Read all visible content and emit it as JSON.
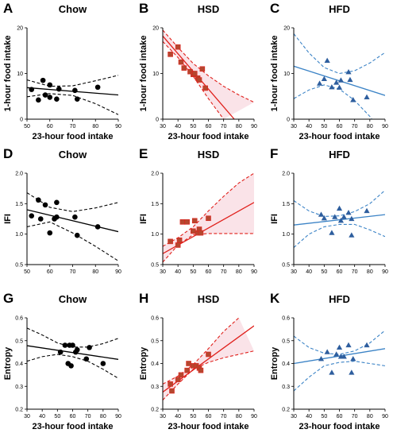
{
  "colors": {
    "chow": "#000000",
    "hsd": "#e0201b",
    "hsd_fill": "#b5472f",
    "hfd": "#2e5e9e",
    "hfd_line": "#3b83c6"
  },
  "chart_data": [
    {
      "letter": "A",
      "type": "scatter",
      "title": "Chow",
      "xlabel": "23-hour food intake",
      "ylabel": "1-hour food intake",
      "xlim": [
        50,
        90
      ],
      "ylim": [
        0,
        20
      ],
      "xticks": [
        50,
        60,
        70,
        80,
        90
      ],
      "yticks": [
        0,
        10,
        20
      ],
      "marker": "circle",
      "color": "#000000",
      "x": [
        52,
        55,
        57,
        58,
        60,
        60,
        63,
        64,
        71,
        72,
        81
      ],
      "y": [
        6.5,
        4.2,
        8.5,
        5.3,
        4.8,
        7.5,
        4.4,
        6.6,
        6.3,
        4.4,
        7.0
      ],
      "fit": [
        [
          50,
          6.9
        ],
        [
          90,
          5.3
        ]
      ],
      "ci_upper": [
        [
          50,
          8.6
        ],
        [
          60,
          7.2
        ],
        [
          70,
          7.3
        ],
        [
          80,
          8.4
        ],
        [
          90,
          9.6
        ]
      ],
      "ci_lower": [
        [
          50,
          4.9
        ],
        [
          60,
          5.6
        ],
        [
          70,
          5.2
        ],
        [
          80,
          3.4
        ],
        [
          90,
          1.0
        ]
      ]
    },
    {
      "letter": "B",
      "type": "scatter",
      "title": "HSD",
      "xlabel": "23-hour food intake",
      "ylabel": "1-hour food intake",
      "xlim": [
        30,
        90
      ],
      "ylim": [
        0,
        20
      ],
      "xticks": [
        30,
        40,
        50,
        60,
        70,
        80,
        90
      ],
      "yticks": [
        0,
        10,
        20
      ],
      "marker": "square",
      "color": "#e0201b",
      "fill": "#b5472f",
      "x": [
        35,
        40,
        42,
        44,
        48,
        50,
        51,
        53,
        54,
        56,
        58
      ],
      "y": [
        14.2,
        15.8,
        12.5,
        11.2,
        10.4,
        9.8,
        10.0,
        9.0,
        8.6,
        11.0,
        6.8
      ],
      "fit": [
        [
          30,
          18.2
        ],
        [
          77,
          0
        ]
      ],
      "ci_upper": [
        [
          30,
          19.5
        ],
        [
          40,
          15.7
        ],
        [
          50,
          12.2
        ],
        [
          60,
          9.5
        ],
        [
          70,
          7.2
        ],
        [
          80,
          5.3
        ],
        [
          90,
          3.7
        ]
      ],
      "ci_lower": [
        [
          30,
          17.0
        ],
        [
          40,
          13.5
        ],
        [
          50,
          9.4
        ],
        [
          60,
          4.5
        ],
        [
          70,
          0
        ]
      ]
    },
    {
      "letter": "C",
      "type": "scatter",
      "title": "HFD",
      "xlabel": "23-hour food intake",
      "ylabel": "1-hour food intake",
      "xlim": [
        30,
        90
      ],
      "ylim": [
        0,
        20
      ],
      "xticks": [
        30,
        40,
        50,
        60,
        70,
        80,
        90
      ],
      "yticks": [
        0,
        10,
        20
      ],
      "marker": "triangle",
      "color": "#2e5e9e",
      "line_color": "#3b83c6",
      "x": [
        47,
        50,
        52,
        55,
        58,
        60,
        61,
        66,
        67,
        69,
        78
      ],
      "y": [
        7.8,
        8.8,
        12.8,
        7.0,
        8.0,
        6.9,
        8.5,
        10.3,
        8.6,
        4.2,
        4.8
      ],
      "fit": [
        [
          30,
          11.6
        ],
        [
          90,
          5.2
        ]
      ],
      "ci_upper": [
        [
          30,
          18.7
        ],
        [
          40,
          14.5
        ],
        [
          50,
          11.3
        ],
        [
          60,
          10.0
        ],
        [
          70,
          10.6
        ],
        [
          80,
          12.3
        ],
        [
          90,
          14.6
        ]
      ],
      "ci_lower": [
        [
          30,
          4.5
        ],
        [
          40,
          6.4
        ],
        [
          50,
          7.5
        ],
        [
          60,
          6.6
        ],
        [
          70,
          4.1
        ],
        [
          80,
          0.6
        ],
        [
          90,
          -4.0
        ]
      ]
    },
    {
      "letter": "D",
      "type": "scatter",
      "title": "Chow",
      "xlabel": "",
      "ylabel": "IFI",
      "xlim": [
        50,
        90
      ],
      "ylim": [
        0.5,
        2.0
      ],
      "xticks": [
        50,
        60,
        70,
        80,
        90
      ],
      "yticks": [
        0.5,
        1.0,
        1.5,
        2.0
      ],
      "marker": "circle",
      "color": "#000000",
      "x": [
        52,
        55,
        56,
        58,
        60,
        62,
        63,
        63,
        71,
        72,
        81
      ],
      "y": [
        1.3,
        1.56,
        1.25,
        1.48,
        1.02,
        1.25,
        1.28,
        1.52,
        1.28,
        0.98,
        1.12
      ],
      "fit": [
        [
          50,
          1.4
        ],
        [
          90,
          1.04
        ]
      ],
      "ci_upper": [
        [
          50,
          1.68
        ],
        [
          60,
          1.44
        ],
        [
          70,
          1.37
        ],
        [
          80,
          1.43
        ],
        [
          90,
          1.52
        ]
      ],
      "ci_lower": [
        [
          50,
          1.12
        ],
        [
          60,
          1.2
        ],
        [
          70,
          1.02
        ],
        [
          80,
          0.8
        ],
        [
          90,
          0.56
        ]
      ]
    },
    {
      "letter": "E",
      "type": "scatter",
      "title": "HSD",
      "xlabel": "",
      "ylabel": "IFI",
      "xlim": [
        30,
        90
      ],
      "ylim": [
        0.5,
        2.0
      ],
      "xticks": [
        30,
        40,
        50,
        60,
        70,
        80,
        90
      ],
      "yticks": [
        0.5,
        1.0,
        1.5,
        2.0
      ],
      "marker": "square",
      "color": "#e0201b",
      "fill": "#b5472f",
      "x": [
        35,
        40,
        41,
        43,
        46,
        50,
        51,
        53,
        54,
        55,
        60
      ],
      "y": [
        0.88,
        0.82,
        0.9,
        1.2,
        1.2,
        1.05,
        1.22,
        1.02,
        1.08,
        1.02,
        1.26
      ],
      "fit": [
        [
          30,
          0.68
        ],
        [
          90,
          1.52
        ]
      ],
      "ci_upper": [
        [
          30,
          0.8
        ],
        [
          40,
          0.94
        ],
        [
          50,
          1.12
        ],
        [
          60,
          1.38
        ],
        [
          70,
          1.62
        ],
        [
          80,
          1.84
        ],
        [
          90,
          2.0
        ]
      ],
      "ci_lower": [
        [
          30,
          0.54
        ],
        [
          40,
          0.82
        ],
        [
          50,
          0.99
        ],
        [
          60,
          1.01
        ],
        [
          70,
          1.01
        ],
        [
          80,
          1.01
        ],
        [
          90,
          1.01
        ]
      ]
    },
    {
      "letter": "F",
      "type": "scatter",
      "title": "HFD",
      "xlabel": "",
      "ylabel": "IFI",
      "xlim": [
        30,
        90
      ],
      "ylim": [
        0.5,
        2.0
      ],
      "xticks": [
        30,
        40,
        50,
        60,
        70,
        80,
        90
      ],
      "yticks": [
        0.5,
        1.0,
        1.5,
        2.0
      ],
      "marker": "triangle",
      "color": "#2e5e9e",
      "line_color": "#3b83c6",
      "x": [
        48,
        50,
        55,
        57,
        60,
        61,
        63,
        66,
        68,
        68,
        78
      ],
      "y": [
        1.32,
        1.26,
        1.02,
        1.28,
        1.42,
        1.22,
        1.28,
        1.35,
        0.98,
        1.25,
        1.38
      ],
      "fit": [
        [
          30,
          1.15
        ],
        [
          90,
          1.32
        ]
      ],
      "ci_upper": [
        [
          30,
          1.55
        ],
        [
          40,
          1.38
        ],
        [
          50,
          1.29
        ],
        [
          60,
          1.3
        ],
        [
          70,
          1.37
        ],
        [
          80,
          1.5
        ],
        [
          90,
          1.72
        ]
      ],
      "ci_lower": [
        [
          30,
          0.78
        ],
        [
          40,
          1.0
        ],
        [
          50,
          1.12
        ],
        [
          60,
          1.16
        ],
        [
          70,
          1.16
        ],
        [
          80,
          1.07
        ],
        [
          90,
          0.96
        ]
      ]
    },
    {
      "letter": "G",
      "type": "scatter",
      "title": "Chow",
      "xlabel": "23-hour food intake",
      "ylabel": "Entropy",
      "xlim": [
        30,
        90
      ],
      "ylim": [
        0.2,
        0.6
      ],
      "xticks": [
        30,
        40,
        50,
        60,
        70,
        80,
        90
      ],
      "yticks": [
        0.2,
        0.3,
        0.4,
        0.5,
        0.6
      ],
      "marker": "circle",
      "color": "#000000",
      "x": [
        52,
        55,
        57,
        58,
        59,
        60,
        62,
        63,
        69,
        71,
        80
      ],
      "y": [
        0.45,
        0.48,
        0.4,
        0.48,
        0.39,
        0.48,
        0.45,
        0.46,
        0.42,
        0.47,
        0.4
      ],
      "fit": [
        [
          30,
          0.478
        ],
        [
          90,
          0.418
        ]
      ],
      "ci_upper": [
        [
          30,
          0.555
        ],
        [
          40,
          0.525
        ],
        [
          50,
          0.49
        ],
        [
          60,
          0.472
        ],
        [
          70,
          0.472
        ],
        [
          80,
          0.487
        ],
        [
          90,
          0.51
        ]
      ],
      "ci_lower": [
        [
          30,
          0.41
        ],
        [
          40,
          0.43
        ],
        [
          50,
          0.44
        ],
        [
          60,
          0.43
        ],
        [
          70,
          0.41
        ],
        [
          80,
          0.375
        ],
        [
          90,
          0.335
        ]
      ]
    },
    {
      "letter": "H",
      "type": "scatter",
      "title": "HSD",
      "xlabel": "23-hour food intake",
      "ylabel": "Entropy",
      "xlim": [
        30,
        90
      ],
      "ylim": [
        0.2,
        0.6
      ],
      "xticks": [
        30,
        40,
        50,
        60,
        70,
        80,
        90
      ],
      "yticks": [
        0.2,
        0.3,
        0.4,
        0.5,
        0.6
      ],
      "marker": "square",
      "color": "#e0201b",
      "fill": "#b5472f",
      "x": [
        35,
        36,
        40,
        42,
        46,
        47,
        50,
        52,
        54,
        55,
        60
      ],
      "y": [
        0.31,
        0.28,
        0.33,
        0.35,
        0.37,
        0.4,
        0.39,
        0.39,
        0.38,
        0.37,
        0.44
      ],
      "fit": [
        [
          30,
          0.275
        ],
        [
          90,
          0.565
        ]
      ],
      "ci_upper": [
        [
          30,
          0.31
        ],
        [
          40,
          0.345
        ],
        [
          50,
          0.395
        ],
        [
          60,
          0.465
        ],
        [
          70,
          0.54
        ],
        [
          80,
          0.6
        ]
      ],
      "ci_lower": [
        [
          30,
          0.24
        ],
        [
          40,
          0.31
        ],
        [
          50,
          0.375
        ],
        [
          60,
          0.405
        ],
        [
          70,
          0.425
        ],
        [
          80,
          0.44
        ],
        [
          90,
          0.455
        ]
      ]
    },
    {
      "letter": "K",
      "type": "scatter",
      "title": "HFD",
      "xlabel": "23-hour food intake",
      "ylabel": "Entropy",
      "xlim": [
        30,
        90
      ],
      "ylim": [
        0.2,
        0.6
      ],
      "xticks": [
        30,
        40,
        50,
        60,
        70,
        80,
        90
      ],
      "yticks": [
        0.2,
        0.3,
        0.4,
        0.5,
        0.6
      ],
      "marker": "triangle",
      "color": "#2e5e9e",
      "line_color": "#3b83c6",
      "x": [
        48,
        52,
        55,
        58,
        60,
        61,
        63,
        66,
        68,
        69,
        78
      ],
      "y": [
        0.42,
        0.45,
        0.36,
        0.44,
        0.47,
        0.43,
        0.43,
        0.48,
        0.36,
        0.42,
        0.48
      ],
      "fit": [
        [
          30,
          0.4
        ],
        [
          90,
          0.465
        ]
      ],
      "ci_upper": [
        [
          30,
          0.52
        ],
        [
          40,
          0.47
        ],
        [
          50,
          0.445
        ],
        [
          60,
          0.44
        ],
        [
          70,
          0.455
        ],
        [
          80,
          0.49
        ],
        [
          90,
          0.545
        ]
      ],
      "ci_lower": [
        [
          30,
          0.28
        ],
        [
          40,
          0.34
        ],
        [
          50,
          0.39
        ],
        [
          60,
          0.405
        ],
        [
          70,
          0.41
        ],
        [
          80,
          0.4
        ],
        [
          90,
          0.39
        ]
      ]
    }
  ]
}
